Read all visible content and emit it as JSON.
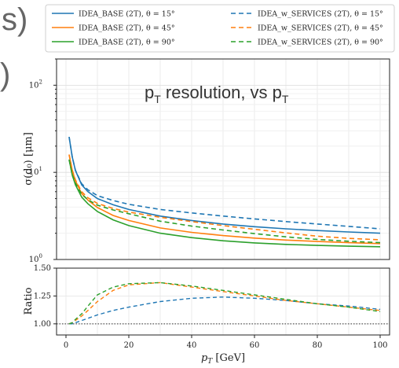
{
  "chart_data": {
    "type": "line",
    "annotation": "p",
    "annotation_sub1": "T",
    "annotation_mid": " resolution, vs p",
    "annotation_sub2": "T",
    "side_text_top": "s)",
    "side_text_bottom": ")",
    "main": {
      "ylabel": "σ(d₀) [μm]",
      "yscale": "log",
      "ylim": [
        1,
        200
      ],
      "yticks": [
        {
          "v": 1,
          "base": "10",
          "exp": "0"
        },
        {
          "v": 10,
          "base": "10",
          "exp": "1"
        },
        {
          "v": 100,
          "base": "10",
          "exp": "2"
        }
      ],
      "grid": true
    },
    "ratio": {
      "ylabel": "Ratio",
      "ylim": [
        0.9,
        1.5
      ],
      "yticks": [
        "1.00",
        "1.25",
        "1.50"
      ],
      "reference": 1.0
    },
    "xlabel": "p_T [GeV]",
    "xlim": [
      -3,
      103
    ],
    "xticks": [
      "0",
      "20",
      "40",
      "60",
      "80",
      "100"
    ],
    "x": [
      1,
      2,
      3,
      5,
      7,
      10,
      15,
      20,
      30,
      40,
      50,
      60,
      70,
      80,
      90,
      100
    ],
    "legend": {
      "placement": "top",
      "columns": 2
    },
    "series": [
      {
        "name": "IDEA_BASE (2T), θ = 15°",
        "color": "#1f77b4",
        "style": "solid",
        "values": [
          25.5,
          15.0,
          10.5,
          7.2,
          6.0,
          5.0,
          4.25,
          3.75,
          3.15,
          2.8,
          2.55,
          2.38,
          2.25,
          2.15,
          2.07,
          2.0
        ]
      },
      {
        "name": "IDEA_BASE (2T), θ = 45°",
        "color": "#ff7f0e",
        "style": "solid",
        "values": [
          16.0,
          10.5,
          8.0,
          5.7,
          4.8,
          3.95,
          3.2,
          2.8,
          2.3,
          2.05,
          1.88,
          1.76,
          1.67,
          1.61,
          1.56,
          1.52
        ]
      },
      {
        "name": "IDEA_BASE (2T), θ = 90°",
        "color": "#2ca02c",
        "style": "solid",
        "values": [
          14.0,
          9.3,
          7.2,
          5.2,
          4.35,
          3.55,
          2.85,
          2.45,
          2.0,
          1.78,
          1.64,
          1.55,
          1.49,
          1.45,
          1.42,
          1.4
        ]
      },
      {
        "name": "IDEA_w_SERVICES (2T), θ = 15°",
        "color": "#1f77b4",
        "style": "dashed",
        "values": [
          25.5,
          15.0,
          10.6,
          7.4,
          6.3,
          5.4,
          4.75,
          4.3,
          3.75,
          3.42,
          3.15,
          2.92,
          2.72,
          2.55,
          2.4,
          2.25
        ]
      },
      {
        "name": "IDEA_w_SERVICES (2T), θ = 45°",
        "color": "#ff7f0e",
        "style": "dashed",
        "values": [
          16.0,
          10.6,
          8.2,
          6.0,
          5.1,
          4.4,
          3.85,
          3.5,
          3.05,
          2.72,
          2.45,
          2.22,
          2.02,
          1.85,
          1.75,
          1.68
        ]
      },
      {
        "name": "IDEA_w_SERVICES (2T), θ = 90°",
        "color": "#2ca02c",
        "style": "dashed",
        "values": [
          14.0,
          9.4,
          7.5,
          5.6,
          4.85,
          4.2,
          3.7,
          3.35,
          2.75,
          2.42,
          2.18,
          1.98,
          1.82,
          1.7,
          1.62,
          1.56
        ]
      }
    ],
    "ratio_series": [
      {
        "name": "θ = 15°",
        "color": "#1f77b4",
        "style": "dashed",
        "values": [
          1.0,
          1.0,
          1.01,
          1.03,
          1.05,
          1.08,
          1.12,
          1.15,
          1.2,
          1.23,
          1.24,
          1.23,
          1.21,
          1.18,
          1.16,
          1.13
        ]
      },
      {
        "name": "θ = 45°",
        "color": "#ff7f0e",
        "style": "dashed",
        "values": [
          1.0,
          1.01,
          1.03,
          1.07,
          1.12,
          1.2,
          1.3,
          1.35,
          1.37,
          1.33,
          1.29,
          1.25,
          1.21,
          1.18,
          1.15,
          1.12
        ]
      },
      {
        "name": "θ = 90°",
        "color": "#2ca02c",
        "style": "dashed",
        "values": [
          1.0,
          1.01,
          1.04,
          1.09,
          1.16,
          1.26,
          1.33,
          1.36,
          1.37,
          1.34,
          1.3,
          1.26,
          1.22,
          1.18,
          1.15,
          1.11
        ]
      }
    ]
  }
}
